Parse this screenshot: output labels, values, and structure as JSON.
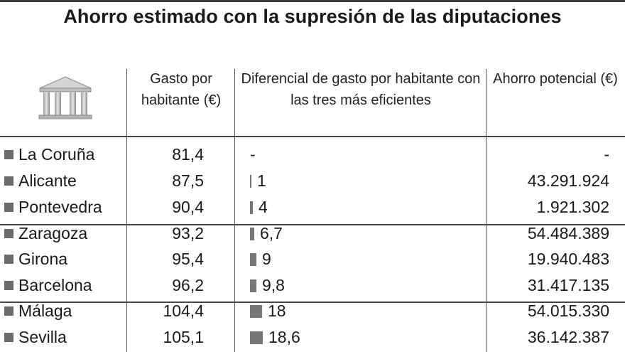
{
  "title": "Ahorro estimado con la supresión de las diputaciones",
  "columns": {
    "gasto": "Gasto por habitante (€)",
    "dif": "Diferencial de gasto por habitante con las tres más eficientes",
    "ahorro": "Ahorro potencial (€)"
  },
  "icon_name": "government-building-icon",
  "colors": {
    "bar": "#777777",
    "marker": "#6b6b6b"
  },
  "chart_data": {
    "type": "table",
    "title": "Ahorro estimado con la supresión de las diputaciones",
    "rows": [
      {
        "provincia": "La Coruña",
        "gasto": "81,4",
        "dif": "-",
        "dif_value": 0,
        "ahorro": "-"
      },
      {
        "provincia": "Alicante",
        "gasto": "87,5",
        "dif": "1",
        "dif_value": 1,
        "ahorro": "43.291.924"
      },
      {
        "provincia": "Pontevedra",
        "gasto": "90,4",
        "dif": "4",
        "dif_value": 4,
        "ahorro": "1.921.302"
      },
      {
        "provincia": "Zaragoza",
        "gasto": "93,2",
        "dif": "6,7",
        "dif_value": 6.7,
        "ahorro": "54.484.389"
      },
      {
        "provincia": "Girona",
        "gasto": "95,4",
        "dif": "9",
        "dif_value": 9,
        "ahorro": "19.940.483"
      },
      {
        "provincia": "Barcelona",
        "gasto": "96,2",
        "dif": "9,8",
        "dif_value": 9.8,
        "ahorro": "31.417.135"
      },
      {
        "provincia": "Málaga",
        "gasto": "104,4",
        "dif": "18",
        "dif_value": 18,
        "ahorro": "54.015.330"
      },
      {
        "provincia": "Sevilla",
        "gasto": "105,1",
        "dif": "18,6",
        "dif_value": 18.6,
        "ahorro": "36.142.387"
      }
    ]
  }
}
